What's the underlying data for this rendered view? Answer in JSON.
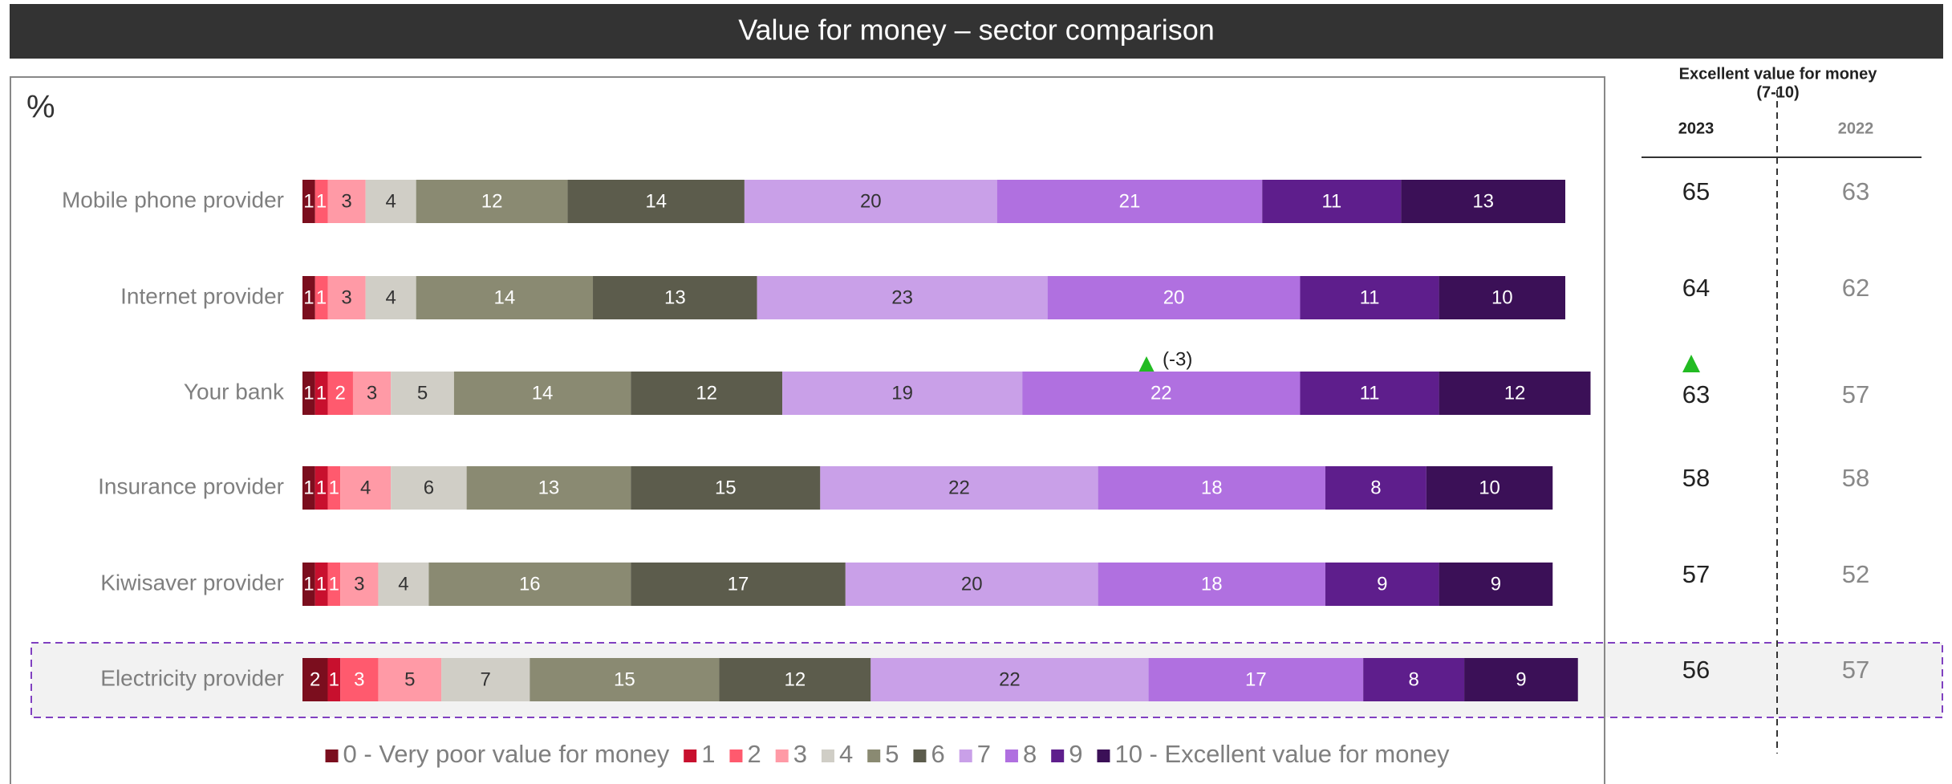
{
  "chart_data": {
    "type": "bar",
    "orientation": "horizontal",
    "stacked": true,
    "title": "Value for money – sector comparison",
    "unit_label": "%",
    "categories": [
      "Mobile phone provider",
      "Internet provider",
      "Your bank",
      "Insurance provider",
      "Kiwisaver provider",
      "Electricity provider"
    ],
    "xlim": [
      0,
      100
    ],
    "series": [
      {
        "name": "0 - Very poor value for money",
        "color": "#7b0e1e",
        "label_color": "#ffffff",
        "values": [
          1,
          1,
          1,
          1,
          1,
          2
        ]
      },
      {
        "name": "1",
        "color": "#c8102e",
        "label_color": "#ffffff",
        "values": [
          null,
          null,
          1,
          1,
          1,
          1
        ]
      },
      {
        "name": "2",
        "color": "#ff5a6e",
        "label_color": "#ffffff",
        "values": [
          1,
          1,
          2,
          1,
          1,
          3
        ]
      },
      {
        "name": "3",
        "color": "#ff9aa6",
        "label_color": "#333333",
        "values": [
          3,
          3,
          3,
          4,
          3,
          5
        ]
      },
      {
        "name": "4",
        "color": "#d0cec6",
        "label_color": "#333333",
        "values": [
          4,
          4,
          5,
          6,
          4,
          7
        ]
      },
      {
        "name": "5",
        "color": "#8a8a72",
        "label_color": "#ffffff",
        "values": [
          12,
          14,
          14,
          13,
          16,
          15
        ]
      },
      {
        "name": "6",
        "color": "#5c5c4c",
        "label_color": "#ffffff",
        "values": [
          14,
          13,
          12,
          15,
          17,
          12
        ]
      },
      {
        "name": "7",
        "color": "#c9a0e8",
        "label_color": "#333333",
        "values": [
          20,
          23,
          19,
          22,
          20,
          22
        ]
      },
      {
        "name": "8",
        "color": "#b070e0",
        "label_color": "#ffffff",
        "values": [
          21,
          20,
          22,
          18,
          18,
          17
        ]
      },
      {
        "name": "9",
        "color": "#5e1e8c",
        "label_color": "#ffffff",
        "values": [
          11,
          11,
          11,
          8,
          9,
          8
        ]
      },
      {
        "name": "10 - Excellent value for money",
        "color": "#3b1057",
        "label_color": "#ffffff",
        "values": [
          13,
          10,
          12,
          10,
          9,
          9
        ]
      }
    ],
    "annotation": "(-3)",
    "table": {
      "header": [
        "Excellent value for money",
        "(7-10)"
      ],
      "columns": [
        "2023",
        "2022"
      ],
      "rows": [
        [
          65,
          63
        ],
        [
          64,
          62
        ],
        [
          63,
          57
        ],
        [
          58,
          58
        ],
        [
          57,
          52
        ],
        [
          56,
          57
        ]
      ]
    }
  }
}
